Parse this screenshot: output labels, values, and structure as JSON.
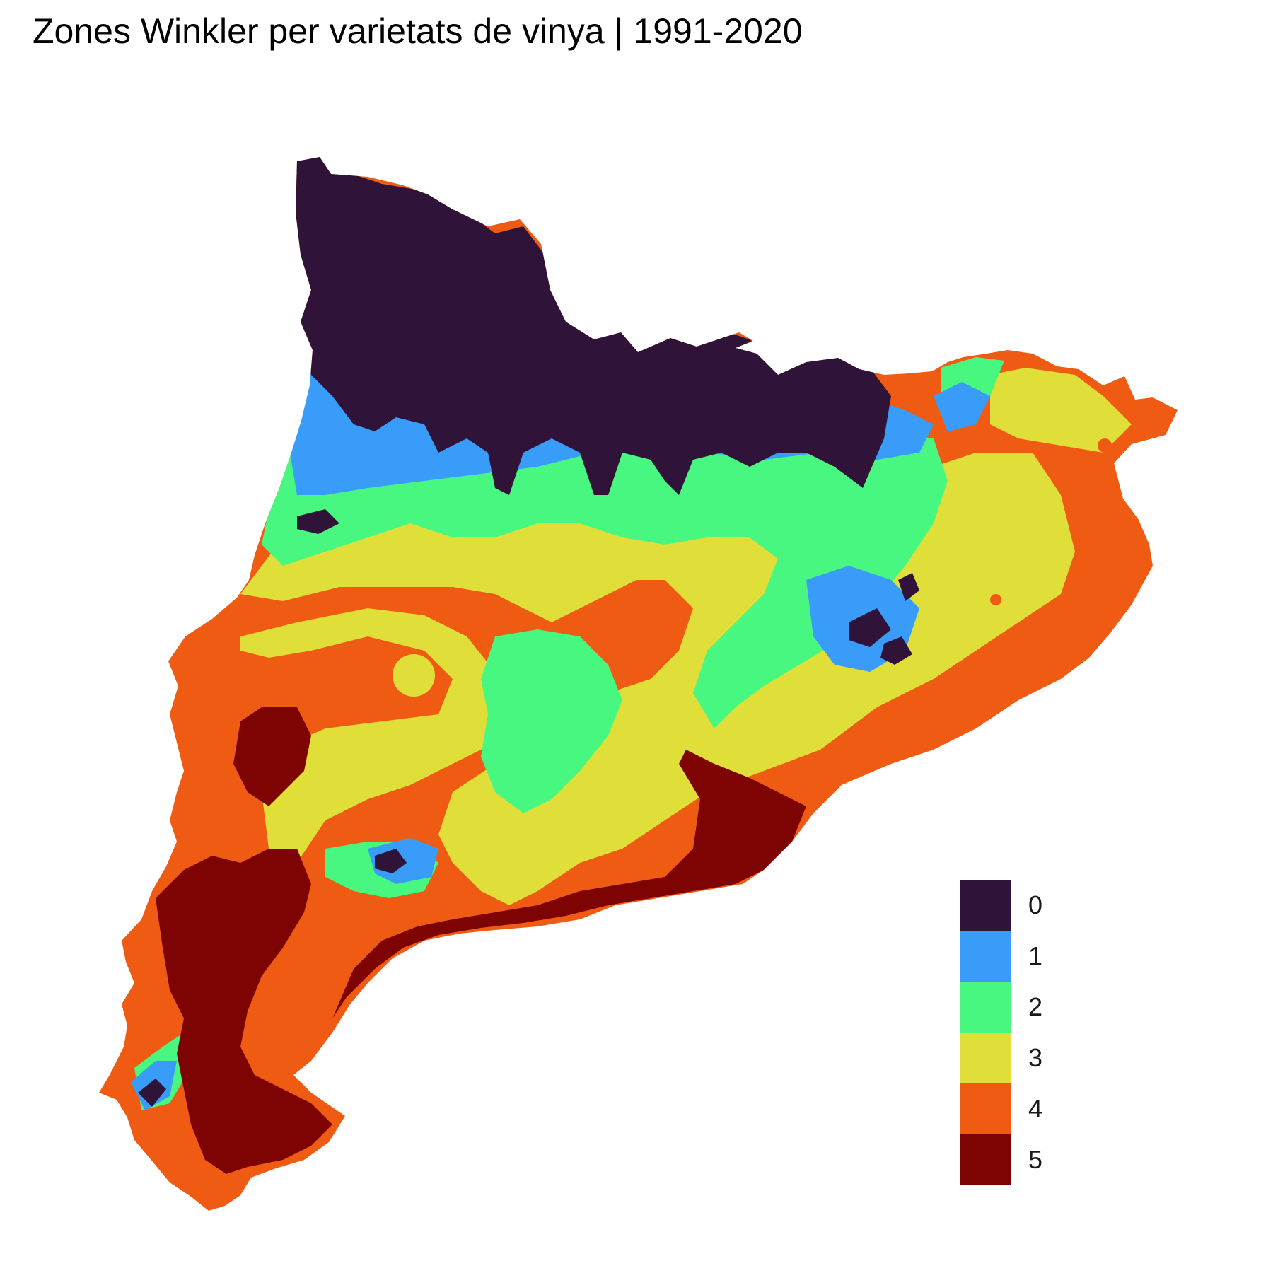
{
  "title": "Zones Winkler per varietats de vinya | 1991-2020",
  "legend": [
    {
      "label": "0",
      "color": "#2f1339"
    },
    {
      "label": "1",
      "color": "#3a9cf9"
    },
    {
      "label": "2",
      "color": "#47f77f"
    },
    {
      "label": "3",
      "color": "#e0de38"
    },
    {
      "label": "4",
      "color": "#ef5b12"
    },
    {
      "label": "5",
      "color": "#7e0404"
    }
  ]
}
